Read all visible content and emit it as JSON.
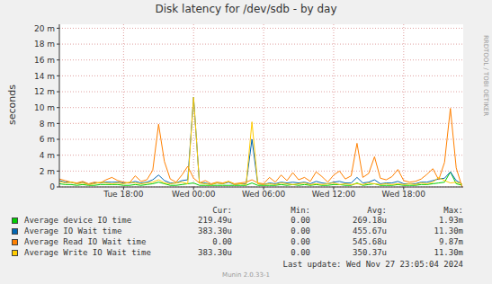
{
  "chart_data": {
    "type": "line",
    "title": "Disk latency for /dev/sdb - by day",
    "y_label": "seconds",
    "x": [
      12.5,
      13,
      13.5,
      14,
      14.5,
      15,
      15.5,
      16,
      16.5,
      17,
      17.5,
      18,
      18.5,
      19,
      19.5,
      20,
      20.5,
      21,
      21.5,
      22,
      22.5,
      23,
      23.5,
      24,
      24.5,
      25,
      25.5,
      26,
      26.5,
      27,
      27.5,
      28,
      28.5,
      29,
      29.5,
      30,
      30.5,
      31,
      31.5,
      32,
      32.5,
      33,
      33.5,
      34,
      34.5,
      35,
      35.5,
      36,
      36.5,
      37,
      37.5,
      38,
      38.5,
      39,
      39.5,
      40,
      40.5,
      41,
      41.5,
      42,
      42.5,
      43,
      43.5,
      44,
      44.5,
      45,
      45.5,
      46,
      46.5,
      47
    ],
    "xlim": [
      12.5,
      47.1
    ],
    "xticks": [
      {
        "value": 18,
        "label": "Tue 18:00"
      },
      {
        "value": 24,
        "label": "Wed 00:00"
      },
      {
        "value": 30,
        "label": "Wed 06:00"
      },
      {
        "value": 36,
        "label": "Wed 12:00"
      },
      {
        "value": 42,
        "label": "Wed 18:00"
      }
    ],
    "ylim": [
      0,
      0.0205
    ],
    "yticks": [
      0,
      {
        "value": 0.002,
        "label": "2 m"
      },
      {
        "value": 0.004,
        "label": "4 m"
      },
      {
        "value": 0.006,
        "label": "6 m"
      },
      {
        "value": 0.008,
        "label": "8 m"
      },
      {
        "value": 0.01,
        "label": "10 m"
      },
      {
        "value": 0.012,
        "label": "12 m"
      },
      {
        "value": 0.014,
        "label": "14 m"
      },
      {
        "value": 0.016,
        "label": "16 m"
      },
      {
        "value": 0.018,
        "label": "18 m"
      },
      {
        "value": 0.02,
        "label": "20 m"
      }
    ],
    "grid": true,
    "stats_header": [
      "Cur:",
      "Min:",
      "Avg:",
      "Max:"
    ],
    "series": [
      {
        "name": "Average device IO time",
        "color": "#00cc00",
        "values": [
          0.0004,
          0.0003,
          0.0003,
          0.0002,
          0.0003,
          0.0002,
          0.0002,
          0.0003,
          0.0003,
          0.0003,
          0.0003,
          0.0002,
          0.0002,
          0.0003,
          0.0002,
          0.0003,
          0.0004,
          0.0006,
          0.0004,
          0.0002,
          0.0002,
          0.0003,
          0.0004,
          0.0005,
          0.0002,
          0.0002,
          0.0002,
          0.0002,
          0.0002,
          0.0002,
          0.0002,
          0.0002,
          0.0002,
          0.0005,
          0.0002,
          0.0002,
          0.0002,
          0.0002,
          0.0003,
          0.0002,
          0.0003,
          0.0002,
          0.0003,
          0.0002,
          0.0003,
          0.0002,
          0.0002,
          0.0003,
          0.0003,
          0.0002,
          0.0002,
          0.0005,
          0.0002,
          0.0003,
          0.0004,
          0.0002,
          0.0002,
          0.0002,
          0.0003,
          0.0002,
          0.0002,
          0.0002,
          0.0003,
          0.0003,
          0.0004,
          0.0005,
          0.0006,
          0.0019,
          0.0004,
          0.00021949
        ],
        "stats": [
          {
            "value": 0.00021949,
            "label": "219.49u"
          },
          {
            "value": 0,
            "label": "0.00"
          },
          {
            "value": 0.00026918,
            "label": "269.18u"
          },
          {
            "value": 0.00193,
            "label": "1.93m"
          }
        ]
      },
      {
        "name": "Average IO Wait time",
        "color": "#0066b3",
        "values": [
          0.0008,
          0.0006,
          0.0006,
          0.0004,
          0.0006,
          0.0003,
          0.0005,
          0.0005,
          0.0006,
          0.0006,
          0.0006,
          0.0005,
          0.0005,
          0.0007,
          0.0005,
          0.0006,
          0.0009,
          0.0015,
          0.0008,
          0.0005,
          0.0005,
          0.0008,
          0.0009,
          0.0113,
          0.0005,
          0.0005,
          0.0003,
          0.0005,
          0.0004,
          0.0006,
          0.0003,
          0.0004,
          0.0004,
          0.006,
          0.0004,
          0.0003,
          0.0005,
          0.0004,
          0.0006,
          0.0005,
          0.0006,
          0.0005,
          0.0006,
          0.0004,
          0.0007,
          0.0005,
          0.0004,
          0.0006,
          0.0007,
          0.0005,
          0.0005,
          0.0012,
          0.0005,
          0.0006,
          0.0009,
          0.0004,
          0.0005,
          0.0005,
          0.0007,
          0.0004,
          0.0004,
          0.0004,
          0.0006,
          0.0006,
          0.0008,
          0.001,
          0.0011,
          0.0019,
          0.0008,
          0.0003833
        ],
        "stats": [
          {
            "value": 0.0003833,
            "label": "383.30u"
          },
          {
            "value": 0,
            "label": "0.00"
          },
          {
            "value": 0.00045567,
            "label": "455.67u"
          },
          {
            "value": 0.0113,
            "label": "11.30m"
          }
        ]
      },
      {
        "name": "Average Read IO Wait time",
        "color": "#ff8000",
        "values": [
          0.001,
          0.0008,
          0.0006,
          0.0005,
          0.0007,
          0.0004,
          0.0006,
          0.0005,
          0.0009,
          0.0012,
          0.0008,
          0.0006,
          0.0005,
          0.0014,
          0.0007,
          0.0009,
          0.0021,
          0.0079,
          0.0032,
          0.001,
          0.0006,
          0.0015,
          0.0026,
          0.0011,
          0.0005,
          0.0008,
          0.0004,
          0.0006,
          0.0005,
          0.0007,
          0.0004,
          0.0005,
          0.0006,
          0.0009,
          0.0005,
          0.0004,
          0.0012,
          0.0006,
          0.0015,
          0.0008,
          0.0018,
          0.0009,
          0.0012,
          0.0007,
          0.0019,
          0.0013,
          0.0006,
          0.0015,
          0.002,
          0.001,
          0.0014,
          0.0055,
          0.0012,
          0.0017,
          0.0038,
          0.0011,
          0.0009,
          0.0013,
          0.0022,
          0.0008,
          0.0006,
          0.0007,
          0.001,
          0.0016,
          0.0023,
          0.0009,
          0.0031,
          0.0099,
          0.0024,
          0
        ],
        "stats": [
          {
            "value": 0,
            "label": "0.00"
          },
          {
            "value": 0,
            "label": "0.00"
          },
          {
            "value": 0.00054568,
            "label": "545.68u"
          },
          {
            "value": 0.00987,
            "label": "9.87m"
          }
        ]
      },
      {
        "name": "Average Write IO Wait time",
        "color": "#ffcc00",
        "values": [
          0.0007,
          0.0005,
          0.0006,
          0.0004,
          0.0005,
          0.0003,
          0.0004,
          0.0006,
          0.0005,
          0.0004,
          0.0005,
          0.0004,
          0.0006,
          0.0005,
          0.0004,
          0.0005,
          0.0006,
          0.0009,
          0.0005,
          0.0004,
          0.0005,
          0.0006,
          0.0004,
          0.0113,
          0.0005,
          0.0004,
          0.0003,
          0.0005,
          0.0004,
          0.0007,
          0.0003,
          0.0004,
          0.0003,
          0.0082,
          0.0004,
          0.0003,
          0.0004,
          0.0003,
          0.0005,
          0.0004,
          0.0003,
          0.0004,
          0.0005,
          0.0003,
          0.0004,
          0.0003,
          0.0004,
          0.0005,
          0.0003,
          0.0004,
          0.0003,
          0.0004,
          0.0003,
          0.0005,
          0.0004,
          0.0003,
          0.0004,
          0.0003,
          0.0004,
          0.0003,
          0.0004,
          0.0003,
          0.0005,
          0.0004,
          0.0006,
          0.0012,
          0.0008,
          0.0005,
          0.0006,
          0.0003833
        ],
        "stats": [
          {
            "value": 0.0003833,
            "label": "383.30u"
          },
          {
            "value": 0,
            "label": "0.00"
          },
          {
            "value": 0.00035037,
            "label": "350.37u"
          },
          {
            "value": 0.0113,
            "label": "11.30m"
          }
        ]
      }
    ],
    "footer": "Last update: Wed Nov 27 23:05:04 2024",
    "watermark": "RRDTOOL / TOBI OETIKER",
    "version": "Munin 2.0.33-1"
  }
}
